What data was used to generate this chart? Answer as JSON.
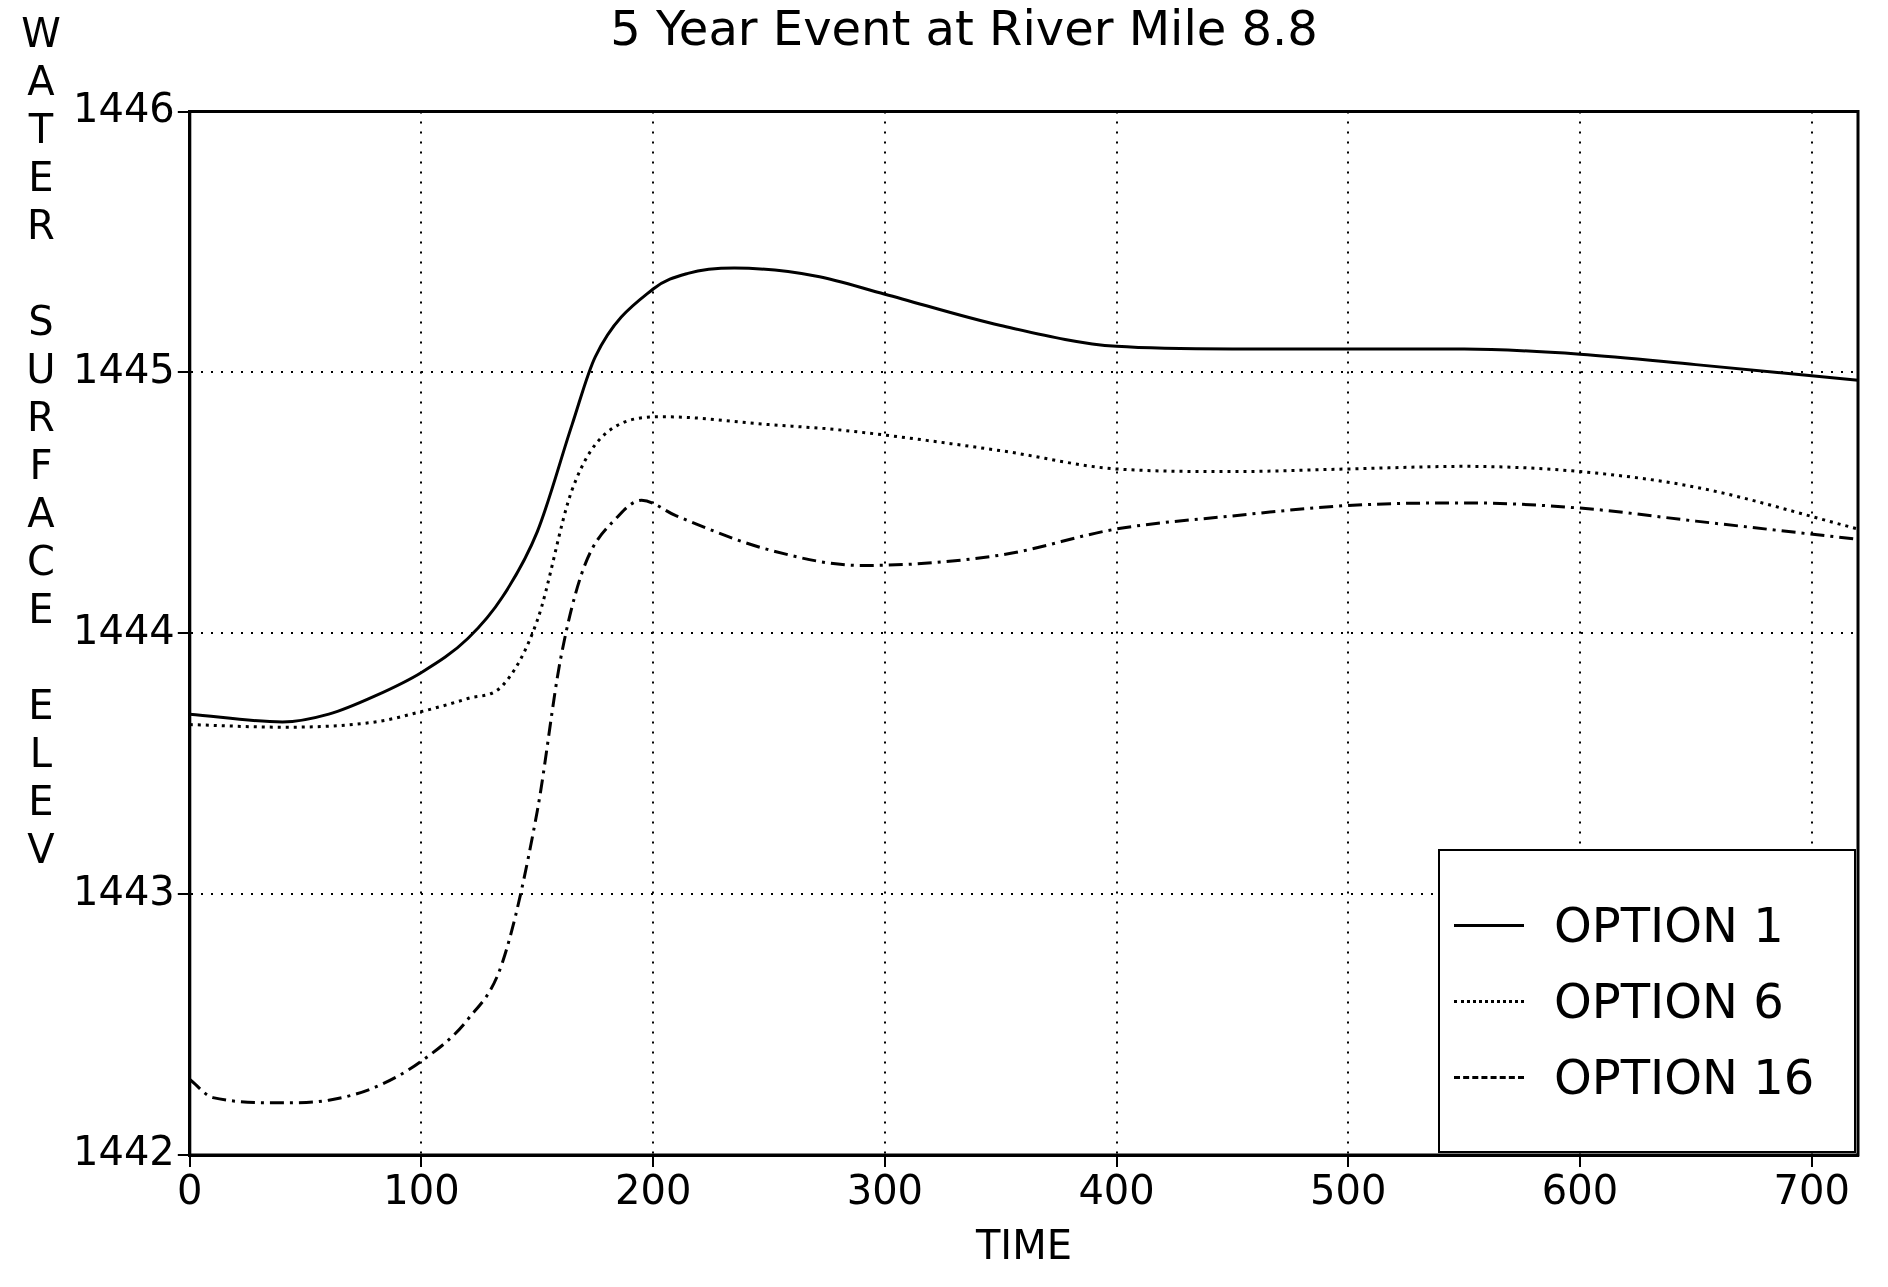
{
  "chart_data": {
    "type": "line",
    "title": "5 Year Event at River Mile 8.8",
    "xlabel": "TIME",
    "ylabel": "WATER SURFACE ELEV",
    "xlim": [
      0,
      720
    ],
    "xticks": [
      0,
      100,
      200,
      300,
      400,
      500,
      600,
      700
    ],
    "ylim": [
      1442,
      1446
    ],
    "yticks": [
      1442,
      1443,
      1444,
      1445,
      1446
    ],
    "grid": true,
    "legend": "bottom right",
    "marker": "none",
    "series": [
      {
        "name": "OPTION 1",
        "color": "#000000",
        "line_style": "solid",
        "x": [
          0,
          40,
          60,
          80,
          100,
          120,
          135,
          150,
          165,
          175,
          200,
          215,
          235,
          270,
          300,
          350,
          400,
          450,
          500,
          550,
          600,
          650,
          720
        ],
        "values": [
          1443.69,
          1443.66,
          1443.69,
          1443.76,
          1443.85,
          1443.98,
          1444.14,
          1444.39,
          1444.8,
          1445.06,
          1445.32,
          1445.38,
          1445.4,
          1445.37,
          1445.3,
          1445.18,
          1445.1,
          1445.09,
          1445.09,
          1445.09,
          1445.07,
          1445.03,
          1444.97
        ]
      },
      {
        "name": "OPTION 6",
        "color": "#000000",
        "line_style": "dotted",
        "x": [
          0,
          40,
          80,
          100,
          120,
          135,
          150,
          165,
          180,
          205,
          250,
          280,
          350,
          400,
          450,
          500,
          550,
          600,
          650,
          720
        ],
        "values": [
          1443.65,
          1443.64,
          1443.66,
          1443.7,
          1443.75,
          1443.8,
          1444.05,
          1444.55,
          1444.77,
          1444.83,
          1444.8,
          1444.78,
          1444.7,
          1444.63,
          1444.62,
          1444.63,
          1444.64,
          1444.62,
          1444.56,
          1444.4
        ]
      },
      {
        "name": "OPTION 16",
        "color": "#000000",
        "line_style": "dashed",
        "x": [
          0,
          10,
          40,
          60,
          80,
          100,
          120,
          135,
          150,
          160,
          170,
          185,
          195,
          210,
          250,
          290,
          350,
          400,
          450,
          500,
          550,
          600,
          650,
          720
        ],
        "values": [
          1442.29,
          1442.22,
          1442.2,
          1442.21,
          1442.26,
          1442.36,
          1442.52,
          1442.74,
          1443.32,
          1443.9,
          1444.25,
          1444.45,
          1444.51,
          1444.45,
          1444.32,
          1444.26,
          1444.3,
          1444.4,
          1444.45,
          1444.49,
          1444.5,
          1444.48,
          1444.43,
          1444.36
        ]
      }
    ]
  }
}
